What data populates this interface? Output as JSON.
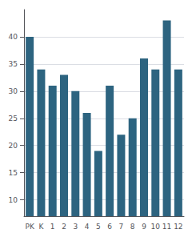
{
  "chart_data": {
    "type": "bar",
    "categories": [
      "PK",
      "K",
      "1",
      "2",
      "3",
      "4",
      "5",
      "6",
      "7",
      "8",
      "9",
      "10",
      "11",
      "12"
    ],
    "values": [
      40,
      34,
      31,
      33,
      30,
      26,
      19,
      31,
      22,
      25,
      36,
      34,
      43,
      34
    ],
    "color": "#2d6480",
    "ylim": [
      7,
      45
    ],
    "yticks": [
      10,
      15,
      20,
      25,
      30,
      35,
      40
    ],
    "grid": true
  }
}
